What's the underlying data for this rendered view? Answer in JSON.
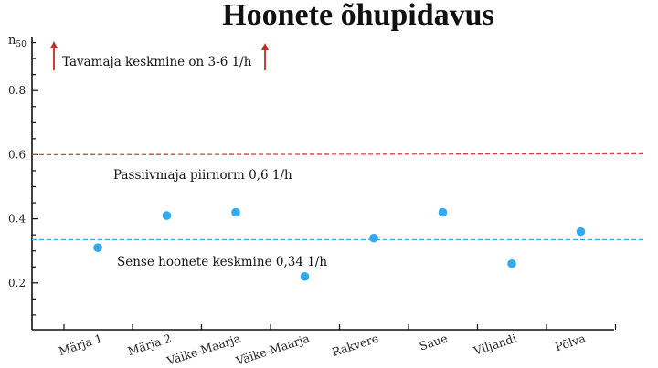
{
  "chart_data": {
    "type": "scatter",
    "title": "Hoonete õhupidavus",
    "ylabel_main": "n",
    "ylabel_sub": "50",
    "categories": [
      "Märja 1",
      "Märja 2",
      "Väike-Maarja",
      "Väike-Maarja",
      "Rakvere",
      "Saue",
      "Viljandi",
      "Põlva"
    ],
    "values": [
      0.31,
      0.41,
      0.42,
      0.22,
      0.34,
      0.42,
      0.26,
      0.36
    ],
    "ylim": [
      0.05,
      1.0
    ],
    "yticks": [
      0.2,
      0.4,
      0.6,
      0.8
    ],
    "ytick_labels": [
      "0.2",
      "0.4",
      "0.6",
      "0.8"
    ],
    "reference_lines": [
      {
        "label": "Passiivmaja piirnorm 0,6  1/h",
        "value": 0.6,
        "color": "#e8383d"
      },
      {
        "label": "Sense hoonete keskmine  0,34 1/h",
        "value": 0.335,
        "color": "#33aaf0"
      }
    ],
    "top_annotation": "Tavamaja keskmine on 3-6 1/h",
    "point_color": "#33aaf0",
    "arrow_color": "#b83224",
    "grid": false
  }
}
